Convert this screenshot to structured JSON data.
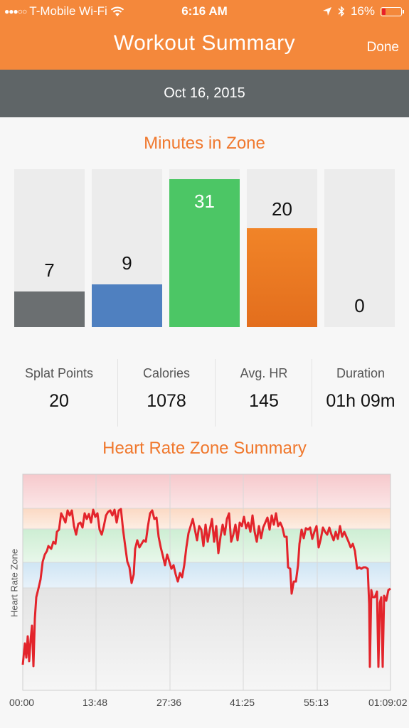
{
  "status_bar": {
    "carrier": "T-Mobile Wi-Fi",
    "time": "6:16 AM",
    "battery": "16%",
    "icons": [
      "signal-dots-icon",
      "wifi-icon",
      "location-arrow-icon",
      "bluetooth-icon",
      "battery-icon"
    ]
  },
  "nav": {
    "title": "Workout Summary",
    "done_label": "Done"
  },
  "date": "Oct 16, 2015",
  "zones": {
    "title": "Minutes in Zone",
    "colors": [
      "#6b6f71",
      "#4f80c0",
      "#4cc665",
      "#f18428",
      "#ececec"
    ],
    "values": [
      "7",
      "9",
      "31",
      "20",
      "0"
    ]
  },
  "stats": [
    {
      "label": "Splat Points",
      "value": "20"
    },
    {
      "label": "Calories",
      "value": "1078"
    },
    {
      "label": "Avg. HR",
      "value": "145"
    },
    {
      "label": "Duration",
      "value": "01h 09m"
    }
  ],
  "hr_chart": {
    "title": "Heart Rate Zone Summary",
    "ylabel": "Heart Rate Zone",
    "x_ticks": [
      "00:00",
      "13:48",
      "27:36",
      "41:25",
      "55:13",
      "01:09:02"
    ],
    "line_color": "#e3242b"
  }
}
